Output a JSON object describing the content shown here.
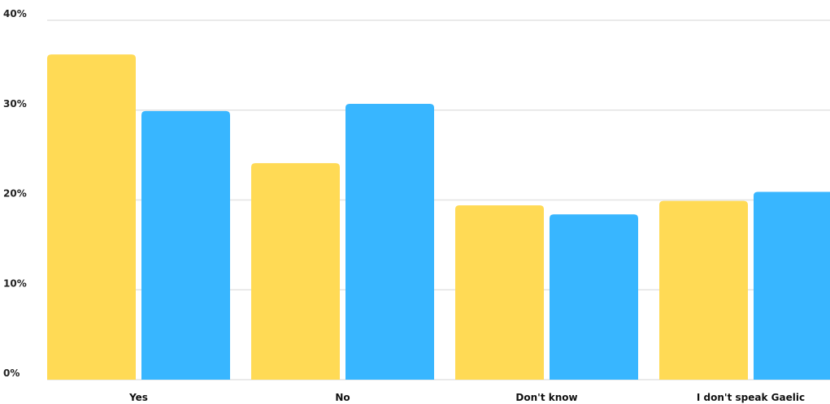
{
  "chart_data": {
    "type": "bar",
    "title": "",
    "xlabel": "",
    "ylabel": "",
    "categories": [
      "Yes",
      "No",
      "Don't know",
      "I don't speak Gaelic"
    ],
    "series": [
      {
        "color": "#FFDA55",
        "values": [
          36.2,
          24.1,
          19.4,
          19.9
        ]
      },
      {
        "color": "#38B6FF",
        "values": [
          29.9,
          30.7,
          18.4,
          20.9
        ]
      }
    ],
    "ylim": [
      0,
      40
    ],
    "yticks": [
      0,
      10,
      20,
      30,
      40
    ],
    "ytick_labels": [
      "0%",
      "10%",
      "20%",
      "30%",
      "40%"
    ],
    "grid": true,
    "legend": "none"
  }
}
